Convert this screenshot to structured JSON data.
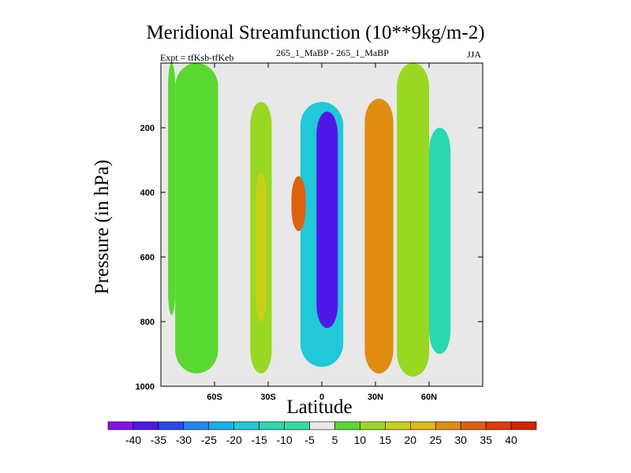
{
  "chart_data": {
    "type": "heatmap",
    "title": "Meridional Streamfunction (10**9kg/m-2)",
    "subtitle_left": "Expt = tfKsb-tfKeb",
    "subtitle_center": "265_1_MaBP - 265_1_MaBP",
    "subtitle_right": "JJA",
    "xlabel": "Latitude",
    "ylabel": "Pressure (in hPa)",
    "xlim": [
      -90,
      90
    ],
    "ylim": [
      1000,
      0
    ],
    "x_ticks": [
      {
        "value": -60,
        "label": "60S"
      },
      {
        "value": -30,
        "label": "30S"
      },
      {
        "value": 0,
        "label": "0"
      },
      {
        "value": 30,
        "label": "30N"
      },
      {
        "value": 60,
        "label": "60N"
      }
    ],
    "y_ticks": [
      {
        "value": 200,
        "label": "200"
      },
      {
        "value": 400,
        "label": "400"
      },
      {
        "value": 600,
        "label": "600"
      },
      {
        "value": 800,
        "label": "800"
      },
      {
        "value": 1000,
        "label": "1000"
      }
    ],
    "colorbar": {
      "labels": [
        "-40",
        "-35",
        "-30",
        "-25",
        "-20",
        "-15",
        "-10",
        "-5",
        "5",
        "10",
        "15",
        "20",
        "25",
        "30",
        "35",
        "40"
      ],
      "colors": [
        "#8a10f0",
        "#5018e8",
        "#2848f0",
        "#2088f0",
        "#18b0e8",
        "#20c8d8",
        "#28d8b0",
        "#30e0a0",
        "#e8e8e8",
        "#58d830",
        "#98d820",
        "#c8d018",
        "#e0b810",
        "#e08c10",
        "#e06010",
        "#e03c08",
        "#d82000"
      ]
    },
    "features": [
      {
        "name": "west-edge-band",
        "level": 5,
        "lat": [
          -86,
          -82
        ],
        "p": [
          0,
          780
        ]
      },
      {
        "name": "southern-cyan-band",
        "level": 5,
        "lat": [
          -82,
          -58
        ],
        "p": [
          0,
          960
        ]
      },
      {
        "name": "southern-green-band",
        "level": 10,
        "lat": [
          -40,
          -28
        ],
        "p": [
          120,
          960
        ]
      },
      {
        "name": "southern-yellow-band",
        "level": 15,
        "lat": [
          -37,
          -31
        ],
        "p": [
          340,
          800
        ]
      },
      {
        "name": "inner-cyan-region",
        "level": -5,
        "lat": [
          -28,
          18
        ],
        "p": [
          50,
          960
        ]
      },
      {
        "name": "blue-core",
        "level": -20,
        "lat": [
          -12,
          12
        ],
        "p": [
          120,
          940
        ]
      },
      {
        "name": "purple-core",
        "level": -40,
        "lat": [
          -3,
          9
        ],
        "p": [
          150,
          820
        ]
      },
      {
        "name": "southern-orange-cell",
        "level": 30,
        "lat": [
          -17,
          -9
        ],
        "p": [
          350,
          520
        ]
      },
      {
        "name": "northern-orange-band",
        "level": 25,
        "lat": [
          24,
          40
        ],
        "p": [
          110,
          960
        ]
      },
      {
        "name": "northern-green-band",
        "level": 10,
        "lat": [
          42,
          60
        ],
        "p": [
          0,
          970
        ]
      },
      {
        "name": "northern-blue-band",
        "level": -15,
        "lat": [
          60,
          72
        ],
        "p": [
          200,
          900
        ]
      }
    ]
  }
}
